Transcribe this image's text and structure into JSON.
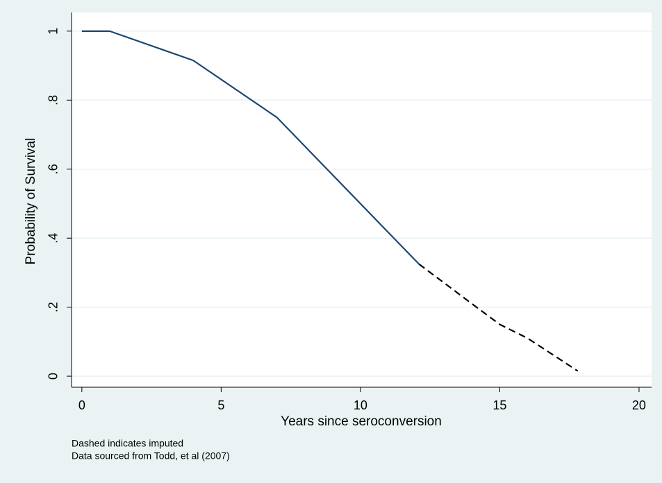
{
  "chart_data": {
    "type": "line",
    "x_label": "Years since seroconversion",
    "y_label": "Probability of Survival",
    "notes": [
      "Dashed indicates imputed",
      "Data sourced from Todd, et al (2007)"
    ],
    "series": [
      {
        "color": "#1a476f",
        "dashed": false,
        "x": [
          0,
          1,
          4,
          7,
          10,
          12.1
        ],
        "values": [
          1,
          1,
          0.915,
          0.75,
          0.5,
          0.325
        ]
      },
      {
        "color": "#000000",
        "dashed": true,
        "x": [
          12.1,
          14,
          15,
          16,
          17.8
        ],
        "values": [
          0.325,
          0.21,
          0.15,
          0.11,
          0.015
        ]
      }
    ],
    "xlim": [
      -0.37,
      20.45
    ],
    "xticks": [
      0,
      5,
      10,
      15,
      20
    ],
    "ylim": [
      -0.032,
      1.054
    ],
    "yticks": [
      0,
      {
        "value": 0.2,
        "label": ".2"
      },
      {
        "value": 0.4,
        "label": ".4"
      },
      {
        "value": 0.6,
        "label": ".6"
      },
      {
        "value": 0.8,
        "label": ".8"
      },
      1
    ],
    "grid": true,
    "grid_color": "#eaf2f3",
    "plot_background": "#ffffff"
  }
}
